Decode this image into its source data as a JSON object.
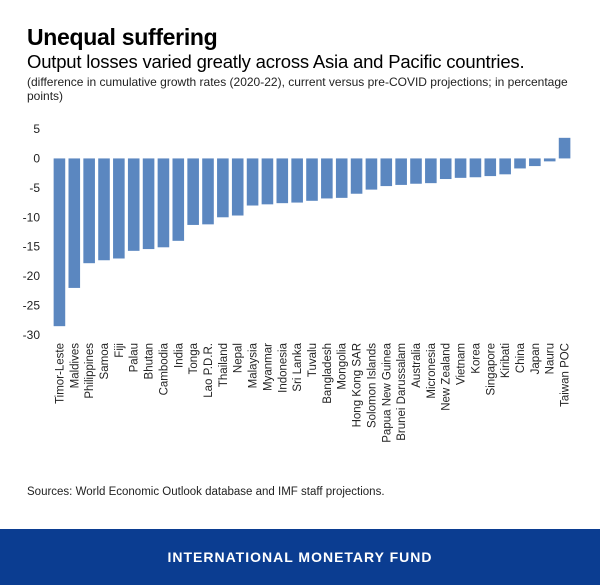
{
  "title": "Unequal suffering",
  "subtitle": "Output losses varied greatly across Asia and Pacific countries.",
  "note": "(difference in cumulative growth rates (2020-22), current versus pre-COVID projections; in percentage points)",
  "source": "Sources: World Economic Outlook database and IMF staff projections.",
  "footer": "INTERNATIONAL MONETARY FUND",
  "colors": {
    "bar": "#5b87c0",
    "footer": "#0b3d91"
  },
  "chart_data": {
    "type": "bar",
    "title": "Unequal suffering",
    "xlabel": "",
    "ylabel": "",
    "ylim": [
      -30,
      5
    ],
    "yticks": [
      5,
      0,
      -5,
      -10,
      -15,
      -20,
      -25,
      -30
    ],
    "grid": false,
    "categories": [
      "Timor-Leste",
      "Maldives",
      "Philippines",
      "Samoa",
      "Fiji",
      "Palau",
      "Bhutan",
      "Cambodia",
      "India",
      "Tonga",
      "Lao P.D.R.",
      "Thailand",
      "Nepal",
      "Malaysia",
      "Myanmar",
      "Indonesia",
      "Sri Lanka",
      "Tuvalu",
      "Bangladesh",
      "Mongolia",
      "Hong Kong SAR",
      "Solomon Islands",
      "Papua New Guinea",
      "Brunei Darussalam",
      "Australia",
      "Micronesia",
      "New Zealand",
      "Vietnam",
      "Korea",
      "Singapore",
      "Kiribati",
      "China",
      "Japan",
      "Nauru",
      "Taiwan POC"
    ],
    "values": [
      -28.5,
      -22.0,
      -17.8,
      -17.3,
      -17.0,
      -15.7,
      -15.4,
      -15.1,
      -14.0,
      -11.3,
      -11.2,
      -10.0,
      -9.7,
      -8.0,
      -7.8,
      -7.6,
      -7.5,
      -7.2,
      -6.8,
      -6.7,
      -6.0,
      -5.3,
      -4.7,
      -4.5,
      -4.3,
      -4.2,
      -3.5,
      -3.3,
      -3.2,
      -3.0,
      -2.7,
      -1.7,
      -1.3,
      -0.5,
      3.5
    ]
  }
}
